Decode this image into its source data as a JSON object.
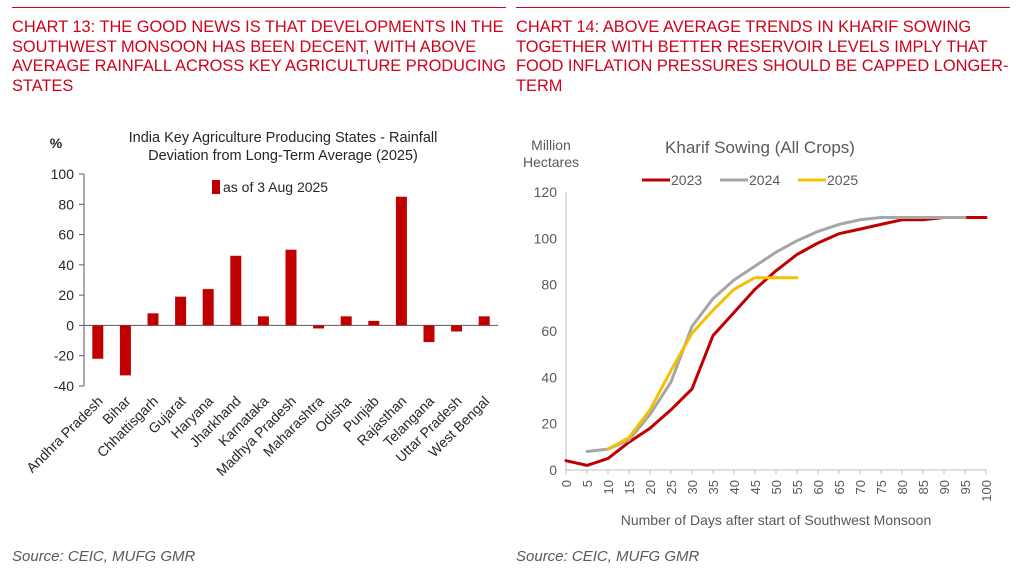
{
  "left_panel": {
    "heading": "CHART 13: THE GOOD NEWS IS THAT DEVELOPMENTS IN THE SOUTHWEST MONSOON HAS BEEN DECENT, WITH ABOVE AVERAGE RAINFALL ACROSS KEY AGRICULTURE PRODUCING STATES",
    "source": "Source: CEIC, MUFG GMR"
  },
  "right_panel": {
    "heading": "CHART 14: ABOVE AVERAGE TRENDS IN KHARIF SOWING TOGETHER WITH BETTER RESERVOIR LEVELS IMPLY THAT FOOD INFLATION PRESSURES SHOULD BE CAPPED LONGER-TERM",
    "source": "Source: CEIC, MUFG GMR"
  },
  "colors": {
    "accent": "#d0021b",
    "bar": "#c00000",
    "s2023": "#c00000",
    "s2024": "#a6a6a6",
    "s2025": "#f5c000"
  },
  "chart_data": [
    {
      "type": "bar",
      "title_lines": [
        "India Key Agriculture Producing States - Rainfall",
        "Deviation from Long-Term Average (2025)"
      ],
      "ylabel": "%",
      "ylim": [
        -40,
        100
      ],
      "yticks": [
        -40,
        -20,
        0,
        20,
        40,
        60,
        80,
        100
      ],
      "categories": [
        "Andhra Pradesh",
        "Bihar",
        "Chhattisgarh",
        "Gujarat",
        "Haryana",
        "Jharkhand",
        "Karnataka",
        "Madhya Pradesh",
        "Maharashtra",
        "Odisha",
        "Punjab",
        "Rajasthan",
        "Telangana",
        "Uttar Pradesh",
        "West Bengal"
      ],
      "series": [
        {
          "name": "as of 3 Aug 2025",
          "values": [
            -22,
            -33,
            8,
            19,
            24,
            46,
            6,
            50,
            -2,
            6,
            3,
            85,
            -11,
            -4,
            6
          ]
        }
      ],
      "legend": "top"
    },
    {
      "type": "line",
      "title": "Kharif Sowing (All Crops)",
      "ylabel_lines": [
        "Million",
        "Hectares"
      ],
      "xlabel": "Number of Days after start of Southwest Monsoon",
      "xlim": [
        0,
        100
      ],
      "ylim": [
        0,
        120
      ],
      "xticks": [
        0,
        5,
        10,
        15,
        20,
        25,
        30,
        35,
        40,
        45,
        50,
        55,
        60,
        65,
        70,
        75,
        80,
        85,
        90,
        95,
        100
      ],
      "yticks": [
        0,
        20,
        40,
        60,
        80,
        100,
        120
      ],
      "legend": "top",
      "series": [
        {
          "name": "2023",
          "x": [
            0,
            5,
            10,
            15,
            20,
            25,
            30,
            35,
            40,
            45,
            50,
            55,
            60,
            65,
            70,
            75,
            80,
            85,
            90,
            95,
            100
          ],
          "y": [
            4,
            2,
            5,
            12,
            18,
            26,
            35,
            58,
            68,
            78,
            86,
            93,
            98,
            102,
            104,
            106,
            108,
            108,
            109,
            109,
            109
          ]
        },
        {
          "name": "2024",
          "x": [
            5,
            10,
            15,
            20,
            25,
            30,
            35,
            40,
            45,
            50,
            55,
            60,
            65,
            70,
            75,
            80,
            85,
            90,
            95
          ],
          "y": [
            8,
            9,
            13,
            24,
            38,
            62,
            74,
            82,
            88,
            94,
            99,
            103,
            106,
            108,
            109,
            109,
            109,
            109,
            109
          ]
        },
        {
          "name": "2025",
          "x": [
            10,
            15,
            20,
            25,
            30,
            35,
            40,
            45,
            50,
            55
          ],
          "y": [
            9,
            14,
            26,
            43,
            59,
            69,
            78,
            83,
            83,
            83
          ]
        }
      ]
    }
  ]
}
